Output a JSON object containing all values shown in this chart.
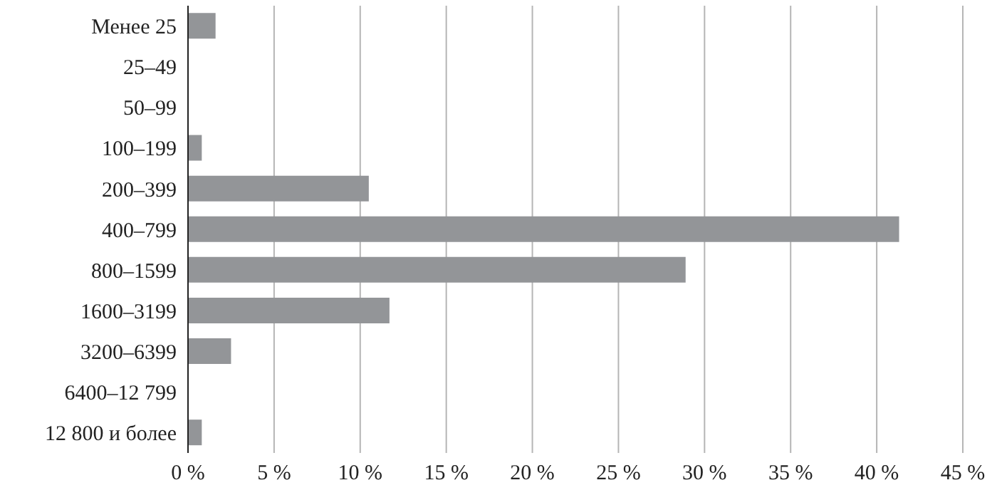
{
  "chart_data": {
    "type": "bar",
    "orientation": "horizontal",
    "categories": [
      "Менее 25",
      "25–49",
      "50–99",
      "100–199",
      "200–399",
      "400–799",
      "800–1599",
      "1600–3199",
      "3200–6399",
      "6400–12 799",
      "12 800 и более"
    ],
    "values": [
      1.6,
      0,
      0,
      0.8,
      10.5,
      41.3,
      28.9,
      11.7,
      2.5,
      0,
      0.8
    ],
    "color": "#939598",
    "xlim": [
      0,
      45
    ],
    "xticks": [
      {
        "value": 0,
        "label": "0 %"
      },
      {
        "value": 5,
        "label": "5 %"
      },
      {
        "value": 10,
        "label": "10 %"
      },
      {
        "value": 15,
        "label": "15 %"
      },
      {
        "value": 20,
        "label": "20 %"
      },
      {
        "value": 25,
        "label": "25 %"
      },
      {
        "value": 30,
        "label": "30 %"
      },
      {
        "value": 35,
        "label": "35 %"
      },
      {
        "value": 40,
        "label": "40 %"
      },
      {
        "value": 45,
        "label": "45 %"
      }
    ],
    "grid": "x",
    "legend": false
  }
}
